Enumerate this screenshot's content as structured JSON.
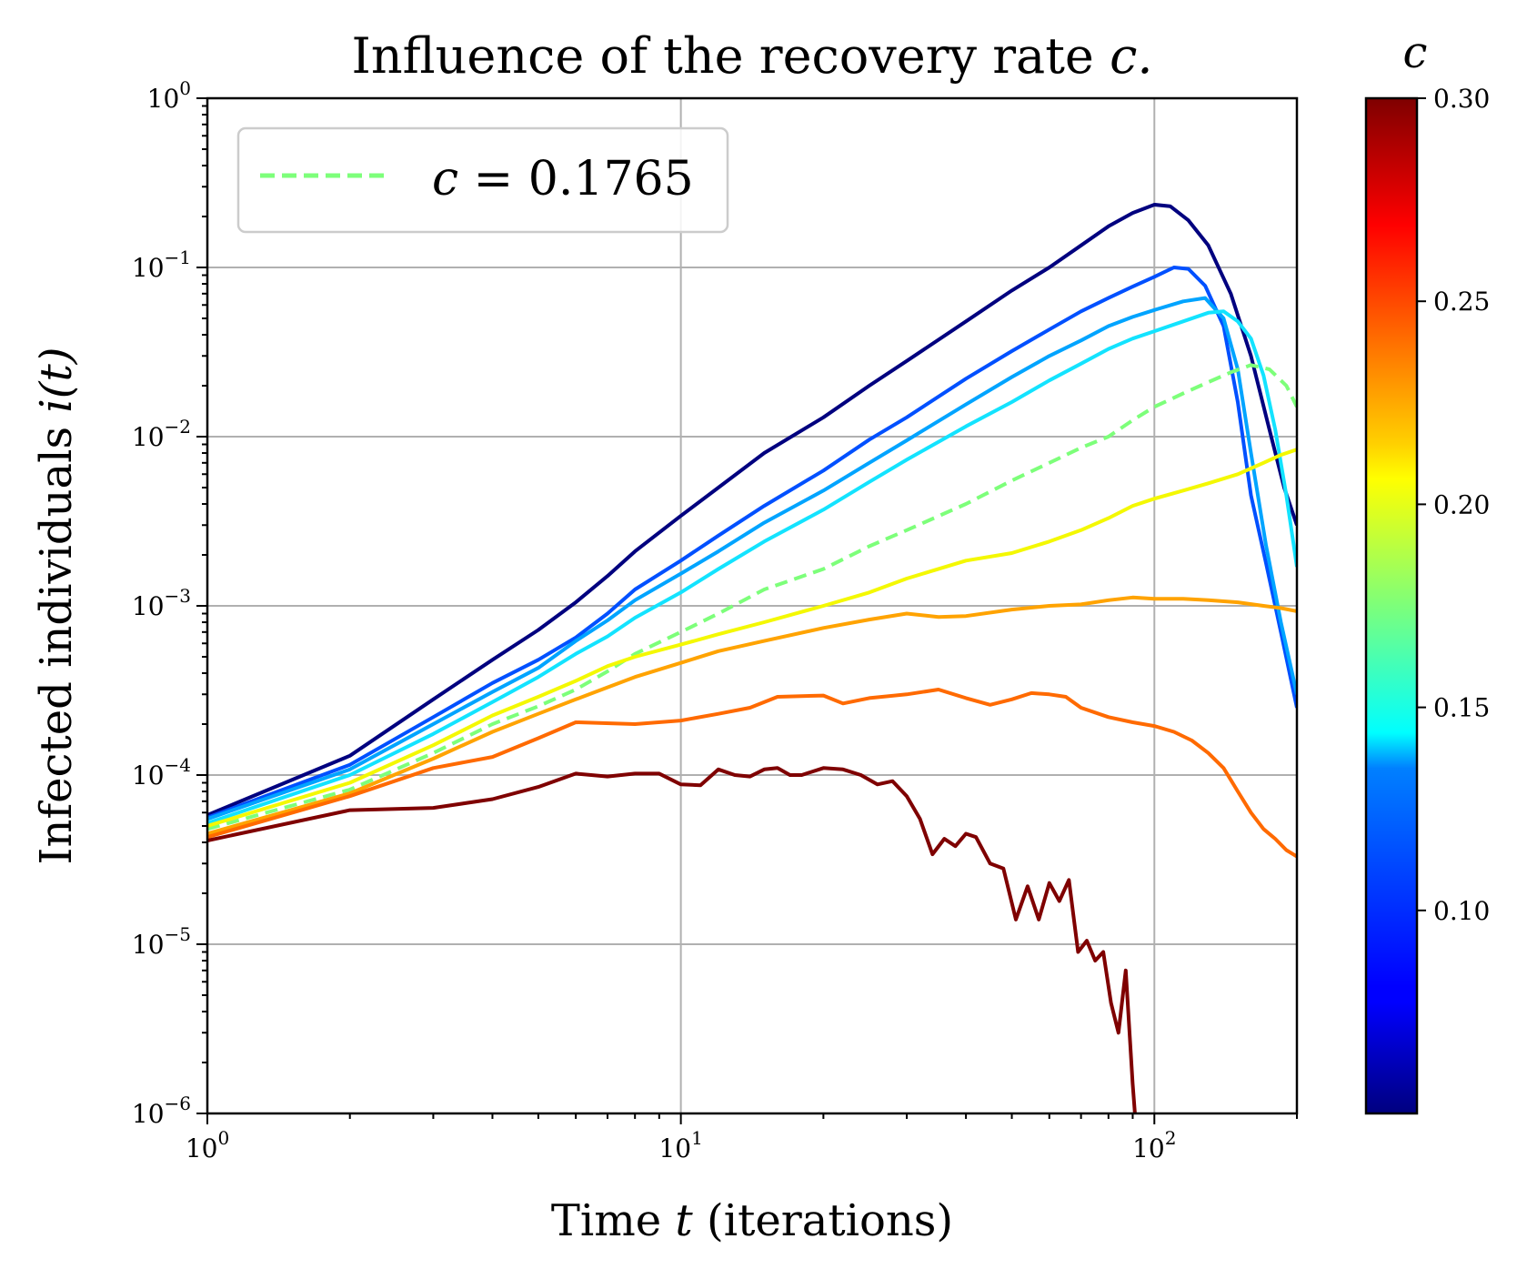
{
  "chart_data": {
    "type": "line",
    "title": "Influence of the recovery rate",
    "title_symbol": "c.",
    "xlabel": "Time",
    "xlabel_symbol": "t",
    "xlabel_suffix": "(iterations)",
    "ylabel": "Infected individuals",
    "ylabel_symbol": "i(t)",
    "xscale": "log",
    "yscale": "log",
    "xlim": [
      1,
      200
    ],
    "ylim": [
      1e-06,
      1
    ],
    "grid": true,
    "x_ticks": [
      {
        "base": "10",
        "exp": "0"
      },
      {
        "base": "10",
        "exp": "1"
      },
      {
        "base": "10",
        "exp": "2"
      }
    ],
    "y_ticks": [
      {
        "base": "10",
        "exp": "0"
      },
      {
        "base": "10",
        "exp": "−1"
      },
      {
        "base": "10",
        "exp": "−2"
      },
      {
        "base": "10",
        "exp": "−3"
      },
      {
        "base": "10",
        "exp": "−4"
      },
      {
        "base": "10",
        "exp": "−5"
      },
      {
        "base": "10",
        "exp": "−6"
      }
    ],
    "legend": {
      "position": "top-left",
      "symbol": "c",
      "text": "= 0.1765"
    },
    "colorbar": {
      "label": "c",
      "range": [
        0.05,
        0.3
      ],
      "colormap": "jet",
      "tick_values": [
        0.1,
        0.15,
        0.2,
        0.25,
        0.3
      ],
      "tick_labels": [
        "0.10",
        "0.15",
        "0.20",
        "0.25",
        "0.30"
      ]
    },
    "series": [
      {
        "name": "c=0.05",
        "color": "#00007f",
        "dashed": false,
        "points": [
          [
            1,
            5.8e-05
          ],
          [
            2,
            0.00013
          ],
          [
            3,
            0.00028
          ],
          [
            4,
            0.00048
          ],
          [
            5,
            0.00072
          ],
          [
            6,
            0.00105
          ],
          [
            7,
            0.0015
          ],
          [
            8,
            0.0021
          ],
          [
            10,
            0.0034
          ],
          [
            12,
            0.005
          ],
          [
            15,
            0.008
          ],
          [
            20,
            0.013
          ],
          [
            25,
            0.02
          ],
          [
            30,
            0.028
          ],
          [
            40,
            0.048
          ],
          [
            50,
            0.073
          ],
          [
            60,
            0.1
          ],
          [
            70,
            0.135
          ],
          [
            80,
            0.175
          ],
          [
            90,
            0.21
          ],
          [
            100,
            0.235
          ],
          [
            108,
            0.23
          ],
          [
            118,
            0.19
          ],
          [
            130,
            0.135
          ],
          [
            145,
            0.07
          ],
          [
            160,
            0.03
          ],
          [
            175,
            0.011
          ],
          [
            188,
            0.005
          ],
          [
            200,
            0.003
          ]
        ]
      },
      {
        "name": "c=0.09",
        "color": "#0050ff",
        "dashed": false,
        "points": [
          [
            1,
            5.6e-05
          ],
          [
            2,
            0.000115
          ],
          [
            3,
            0.00022
          ],
          [
            4,
            0.00035
          ],
          [
            5,
            0.00048
          ],
          [
            6,
            0.00065
          ],
          [
            7,
            0.0009
          ],
          [
            8,
            0.00125
          ],
          [
            10,
            0.00185
          ],
          [
            12,
            0.0026
          ],
          [
            15,
            0.0039
          ],
          [
            20,
            0.0063
          ],
          [
            25,
            0.0096
          ],
          [
            30,
            0.013
          ],
          [
            40,
            0.022
          ],
          [
            50,
            0.032
          ],
          [
            60,
            0.043
          ],
          [
            70,
            0.055
          ],
          [
            80,
            0.066
          ],
          [
            90,
            0.077
          ],
          [
            100,
            0.088
          ],
          [
            110,
            0.1
          ],
          [
            118,
            0.098
          ],
          [
            128,
            0.078
          ],
          [
            140,
            0.045
          ],
          [
            150,
            0.016
          ],
          [
            160,
            0.0045
          ],
          [
            172,
            0.0018
          ],
          [
            185,
            0.0007
          ],
          [
            200,
            0.00025
          ]
        ]
      },
      {
        "name": "c=0.11",
        "color": "#00a4ff",
        "dashed": false,
        "points": [
          [
            1,
            5.5e-05
          ],
          [
            2,
            0.000108
          ],
          [
            3,
            0.0002
          ],
          [
            4,
            0.00031
          ],
          [
            5,
            0.00043
          ],
          [
            6,
            0.00062
          ],
          [
            7,
            0.00082
          ],
          [
            8,
            0.00108
          ],
          [
            10,
            0.00155
          ],
          [
            12,
            0.0021
          ],
          [
            15,
            0.0031
          ],
          [
            20,
            0.0048
          ],
          [
            25,
            0.007
          ],
          [
            30,
            0.0095
          ],
          [
            40,
            0.0155
          ],
          [
            50,
            0.0225
          ],
          [
            60,
            0.03
          ],
          [
            70,
            0.037
          ],
          [
            80,
            0.045
          ],
          [
            90,
            0.051
          ],
          [
            100,
            0.056
          ],
          [
            115,
            0.063
          ],
          [
            128,
            0.066
          ],
          [
            140,
            0.05
          ],
          [
            150,
            0.025
          ],
          [
            160,
            0.008
          ],
          [
            172,
            0.0023
          ],
          [
            185,
            0.0008
          ],
          [
            200,
            0.0003
          ]
        ]
      },
      {
        "name": "c=0.13",
        "color": "#13e3ff",
        "dashed": false,
        "points": [
          [
            1,
            5.2e-05
          ],
          [
            2,
            0.0001
          ],
          [
            3,
            0.000175
          ],
          [
            4,
            0.00027
          ],
          [
            5,
            0.00038
          ],
          [
            6,
            0.00052
          ],
          [
            7,
            0.00066
          ],
          [
            8,
            0.00085
          ],
          [
            10,
            0.0012
          ],
          [
            12,
            0.00165
          ],
          [
            15,
            0.0024
          ],
          [
            20,
            0.0037
          ],
          [
            25,
            0.0054
          ],
          [
            30,
            0.0073
          ],
          [
            40,
            0.0115
          ],
          [
            50,
            0.016
          ],
          [
            60,
            0.0215
          ],
          [
            70,
            0.027
          ],
          [
            80,
            0.033
          ],
          [
            90,
            0.038
          ],
          [
            100,
            0.042
          ],
          [
            115,
            0.048
          ],
          [
            130,
            0.054
          ],
          [
            140,
            0.055
          ],
          [
            150,
            0.048
          ],
          [
            160,
            0.038
          ],
          [
            170,
            0.023
          ],
          [
            180,
            0.011
          ],
          [
            190,
            0.0045
          ],
          [
            200,
            0.0017
          ]
        ]
      },
      {
        "name": "c=0.1765",
        "color": "#7dff7a",
        "dashed": true,
        "points": [
          [
            1,
            4.8e-05
          ],
          [
            2,
            8.2e-05
          ],
          [
            3,
            0.000135
          ],
          [
            4,
            0.0002
          ],
          [
            5,
            0.000255
          ],
          [
            6,
            0.00032
          ],
          [
            7,
            0.00041
          ],
          [
            8,
            0.00052
          ],
          [
            10,
            0.0007
          ],
          [
            12,
            0.0009
          ],
          [
            15,
            0.00125
          ],
          [
            20,
            0.00165
          ],
          [
            25,
            0.00225
          ],
          [
            30,
            0.0028
          ],
          [
            40,
            0.004
          ],
          [
            50,
            0.0055
          ],
          [
            60,
            0.007
          ],
          [
            70,
            0.0086
          ],
          [
            80,
            0.01
          ],
          [
            90,
            0.0125
          ],
          [
            100,
            0.015
          ],
          [
            115,
            0.018
          ],
          [
            130,
            0.021
          ],
          [
            145,
            0.024
          ],
          [
            160,
            0.0265
          ],
          [
            175,
            0.025
          ],
          [
            190,
            0.02
          ],
          [
            200,
            0.015
          ]
        ]
      },
      {
        "name": "c=0.21",
        "color": "#f4f802",
        "dashed": false,
        "points": [
          [
            1,
            5e-05
          ],
          [
            2,
            9e-05
          ],
          [
            3,
            0.00015
          ],
          [
            4,
            0.000225
          ],
          [
            5,
            0.00029
          ],
          [
            6,
            0.00036
          ],
          [
            7,
            0.00044
          ],
          [
            8,
            0.0005
          ],
          [
            10,
            0.00059
          ],
          [
            12,
            0.00068
          ],
          [
            15,
            0.0008
          ],
          [
            20,
            0.001
          ],
          [
            25,
            0.0012
          ],
          [
            30,
            0.00145
          ],
          [
            40,
            0.00185
          ],
          [
            50,
            0.00205
          ],
          [
            60,
            0.0024
          ],
          [
            70,
            0.0028
          ],
          [
            80,
            0.0033
          ],
          [
            90,
            0.0039
          ],
          [
            100,
            0.0043
          ],
          [
            115,
            0.0048
          ],
          [
            130,
            0.0053
          ],
          [
            150,
            0.006
          ],
          [
            170,
            0.007
          ],
          [
            185,
            0.0078
          ],
          [
            200,
            0.0084
          ]
        ]
      },
      {
        "name": "c=0.235",
        "color": "#ffa300",
        "dashed": false,
        "points": [
          [
            1,
            4.5e-05
          ],
          [
            2,
            7.8e-05
          ],
          [
            3,
            0.000125
          ],
          [
            4,
            0.00018
          ],
          [
            5,
            0.00023
          ],
          [
            6,
            0.00028
          ],
          [
            7,
            0.00033
          ],
          [
            8,
            0.00038
          ],
          [
            10,
            0.00046
          ],
          [
            12,
            0.00054
          ],
          [
            15,
            0.00062
          ],
          [
            20,
            0.00074
          ],
          [
            25,
            0.00083
          ],
          [
            30,
            0.0009
          ],
          [
            35,
            0.00086
          ],
          [
            40,
            0.00087
          ],
          [
            50,
            0.00095
          ],
          [
            60,
            0.001
          ],
          [
            70,
            0.00102
          ],
          [
            80,
            0.00108
          ],
          [
            90,
            0.00112
          ],
          [
            100,
            0.0011
          ],
          [
            115,
            0.0011
          ],
          [
            130,
            0.00108
          ],
          [
            150,
            0.00105
          ],
          [
            170,
            0.001
          ],
          [
            185,
            0.00097
          ],
          [
            200,
            0.00093
          ]
        ]
      },
      {
        "name": "c=0.26",
        "color": "#ff6a00",
        "dashed": false,
        "points": [
          [
            1,
            4.3e-05
          ],
          [
            2,
            7.5e-05
          ],
          [
            3,
            0.00011
          ],
          [
            4,
            0.000128
          ],
          [
            5,
            0.000165
          ],
          [
            6,
            0.000205
          ],
          [
            8,
            0.0002
          ],
          [
            10,
            0.00021
          ],
          [
            12,
            0.00023
          ],
          [
            14,
            0.00025
          ],
          [
            16,
            0.00029
          ],
          [
            20,
            0.000295
          ],
          [
            22,
            0.000265
          ],
          [
            25,
            0.000285
          ],
          [
            30,
            0.0003
          ],
          [
            35,
            0.00032
          ],
          [
            40,
            0.000285
          ],
          [
            45,
            0.00026
          ],
          [
            50,
            0.00028
          ],
          [
            55,
            0.000305
          ],
          [
            60,
            0.0003
          ],
          [
            65,
            0.00029
          ],
          [
            70,
            0.00025
          ],
          [
            80,
            0.00022
          ],
          [
            90,
            0.000205
          ],
          [
            100,
            0.000195
          ],
          [
            110,
            0.00018
          ],
          [
            120,
            0.00016
          ],
          [
            130,
            0.000135
          ],
          [
            140,
            0.00011
          ],
          [
            150,
            8e-05
          ],
          [
            160,
            6e-05
          ],
          [
            170,
            4.8e-05
          ],
          [
            180,
            4.2e-05
          ],
          [
            190,
            3.6e-05
          ],
          [
            200,
            3.3e-05
          ]
        ]
      },
      {
        "name": "c=0.30",
        "color": "#7f0000",
        "dashed": false,
        "points": [
          [
            1,
            4.1e-05
          ],
          [
            2,
            6.2e-05
          ],
          [
            3,
            6.4e-05
          ],
          [
            4,
            7.2e-05
          ],
          [
            5,
            8.5e-05
          ],
          [
            6,
            0.000102
          ],
          [
            7,
            9.8e-05
          ],
          [
            8,
            0.000102
          ],
          [
            9,
            0.000102
          ],
          [
            10,
            8.8e-05
          ],
          [
            11,
            8.7e-05
          ],
          [
            12,
            0.000108
          ],
          [
            13,
            0.0001
          ],
          [
            14,
            9.8e-05
          ],
          [
            15,
            0.000108
          ],
          [
            16,
            0.00011
          ],
          [
            17,
            0.0001
          ],
          [
            18,
            0.0001
          ],
          [
            20,
            0.00011
          ],
          [
            22,
            0.000108
          ],
          [
            24,
            0.0001
          ],
          [
            26,
            8.8e-05
          ],
          [
            28,
            9.2e-05
          ],
          [
            30,
            7.5e-05
          ],
          [
            32,
            5.5e-05
          ],
          [
            34,
            3.4e-05
          ],
          [
            36,
            4.2e-05
          ],
          [
            38,
            3.8e-05
          ],
          [
            40,
            4.5e-05
          ],
          [
            42,
            4.3e-05
          ],
          [
            45,
            3e-05
          ],
          [
            48,
            2.8e-05
          ],
          [
            51,
            1.4e-05
          ],
          [
            54,
            2.2e-05
          ],
          [
            57,
            1.4e-05
          ],
          [
            60,
            2.3e-05
          ],
          [
            63,
            1.8e-05
          ],
          [
            66,
            2.4e-05
          ],
          [
            69,
            9e-06
          ],
          [
            72,
            1.05e-05
          ],
          [
            75,
            8e-06
          ],
          [
            78,
            9e-06
          ],
          [
            81,
            4.5e-06
          ],
          [
            84,
            3e-06
          ],
          [
            87,
            7e-06
          ],
          [
            90,
            1.5e-06
          ],
          [
            91,
            1e-06
          ]
        ]
      }
    ]
  }
}
